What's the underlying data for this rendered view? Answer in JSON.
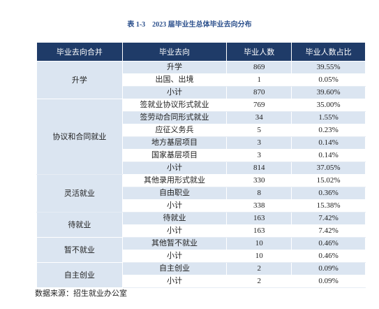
{
  "title": "表 1-3　2023 届毕业生总体毕业去向分布",
  "table": {
    "header": [
      "毕业去向合并",
      "毕业去向",
      "毕业人数",
      "毕业人数占比"
    ],
    "groups": [
      {
        "name": "升学",
        "rows": [
          [
            "升学",
            869,
            "39.55%"
          ],
          [
            "出国、出境",
            1,
            "0.05%"
          ],
          [
            "小计",
            870,
            "39.60%"
          ]
        ]
      },
      {
        "name": "协议和合同就业",
        "rows": [
          [
            "签就业协议形式就业",
            769,
            "35.00%"
          ],
          [
            "签劳动合同形式就业",
            34,
            "1.55%"
          ],
          [
            "应征义务兵",
            5,
            "0.23%"
          ],
          [
            "地方基层项目",
            3,
            "0.14%"
          ],
          [
            "国家基层项目",
            3,
            "0.14%"
          ],
          [
            "小计",
            814,
            "37.05%"
          ]
        ]
      },
      {
        "name": "灵活就业",
        "rows": [
          [
            "其他录用形式就业",
            330,
            "15.02%"
          ],
          [
            "自由职业",
            8,
            "0.36%"
          ],
          [
            "小计",
            338,
            "15.38%"
          ]
        ]
      },
      {
        "name": "待就业",
        "rows": [
          [
            "待就业",
            163,
            "7.42%"
          ],
          [
            "小计",
            163,
            "7.42%"
          ]
        ]
      },
      {
        "name": "暂不就业",
        "rows": [
          [
            "其他暂不就业",
            10,
            "0.46%"
          ],
          [
            "小计",
            10,
            "0.46%"
          ]
        ]
      },
      {
        "name": "自主创业",
        "rows": [
          [
            "自主创业",
            2,
            "0.09%"
          ],
          [
            "小计",
            2,
            "0.09%"
          ]
        ]
      }
    ]
  },
  "source": "数据来源：招生就业办公室"
}
